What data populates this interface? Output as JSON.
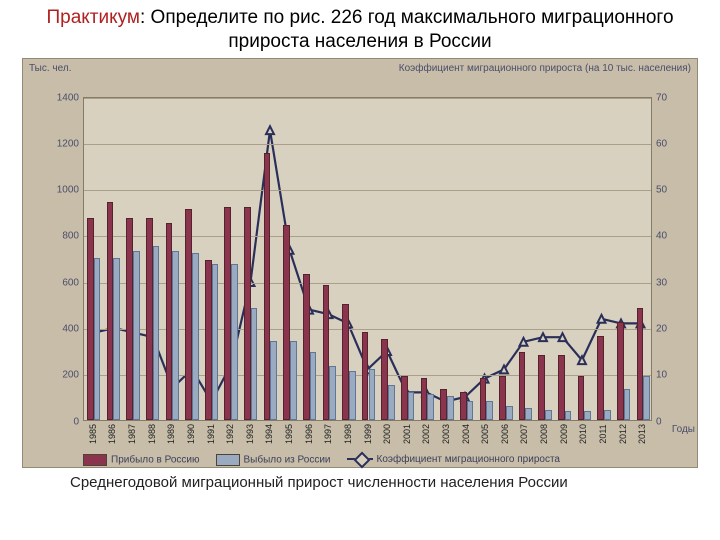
{
  "title": {
    "prefix": "Практикум",
    "rest": ": Определите по рис. 226 год максимального миграционного прироста населения в России"
  },
  "caption": "Среднегодовой миграционный прирост численности населения России",
  "chart": {
    "type": "bar+line",
    "background_color": "#c7bda9",
    "plot_bg": "#d9d1bf",
    "grid_color": "#aaa08a",
    "y_left": {
      "label": "Тыс. чел.",
      "min": 0,
      "max": 1400,
      "step": 200
    },
    "y_right": {
      "label": "Коэффициент миграционного прироста\n(на 10 тыс. населения)",
      "min": 0,
      "max": 70,
      "step": 10
    },
    "x_label": "Годы",
    "years": [
      1985,
      1986,
      1987,
      1988,
      1989,
      1990,
      1991,
      1992,
      1993,
      1994,
      1995,
      1996,
      1997,
      1998,
      1999,
      2000,
      2001,
      2002,
      2003,
      2004,
      2005,
      2006,
      2007,
      2008,
      2009,
      2010,
      2011,
      2012,
      2013
    ],
    "arrived": {
      "color": "#8a354d",
      "label": "Прибыло в Россию",
      "values": [
        870,
        940,
        870,
        870,
        850,
        910,
        690,
        920,
        920,
        1150,
        840,
        630,
        580,
        500,
        380,
        350,
        190,
        180,
        130,
        120,
        180,
        190,
        290,
        280,
        280,
        190,
        360,
        420,
        480
      ]
    },
    "left": {
      "color": "#9aabc1",
      "label": "Выбыло из России",
      "values": [
        700,
        700,
        730,
        750,
        730,
        720,
        670,
        670,
        480,
        340,
        340,
        290,
        230,
        210,
        220,
        150,
        120,
        110,
        100,
        80,
        80,
        60,
        50,
        40,
        35,
        35,
        40,
        130,
        190
      ]
    },
    "coef": {
      "color": "#2a2f5a",
      "label": "Коэффициент миграционного прироста",
      "marker": "triangle",
      "values": [
        19,
        20,
        19,
        18,
        7,
        11,
        4,
        12,
        30,
        63,
        37,
        24,
        23,
        21,
        11,
        15,
        6,
        6,
        4,
        5,
        9,
        11,
        17,
        18,
        18,
        13,
        22,
        21,
        21
      ]
    }
  }
}
